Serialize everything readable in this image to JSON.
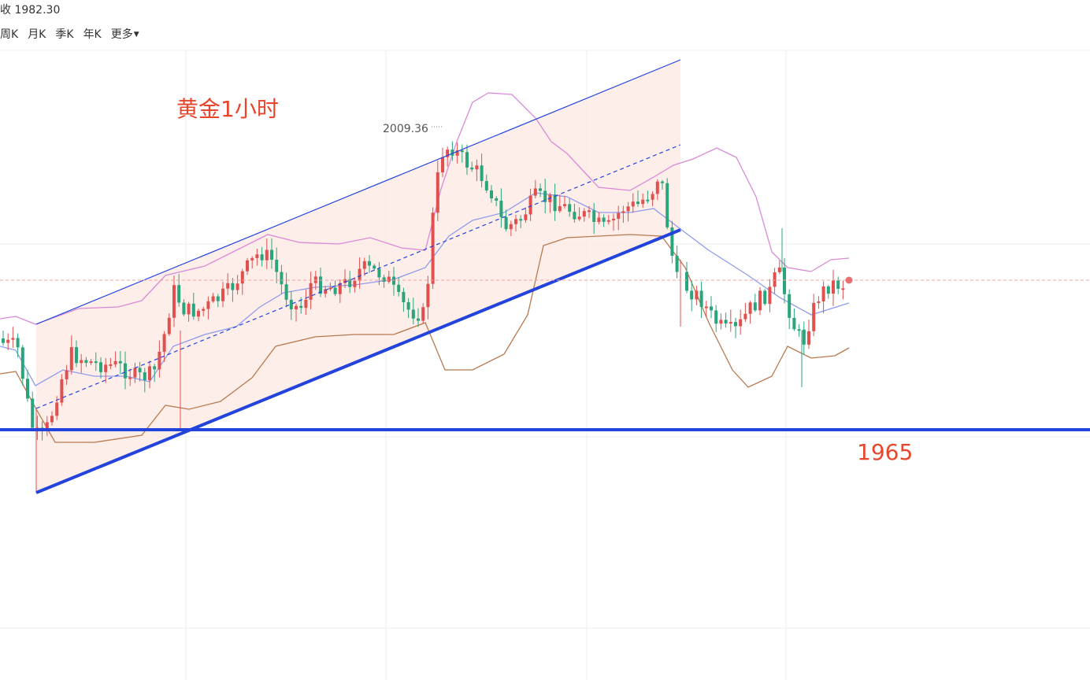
{
  "header": {
    "close_label": "收",
    "close_value": "1982.30",
    "periods": [
      "周K",
      "月K",
      "季K",
      "年K"
    ],
    "more_label": "更多"
  },
  "colors": {
    "up": "#e0504f",
    "down": "#2aa57b",
    "channel_line": "#2244dd",
    "channel_fill": "#fde8e2",
    "boll_upper": "#d98ad6",
    "boll_mid": "#8f9cea",
    "boll_lower": "#b9794f",
    "annotation": "#e8452c",
    "current_price_line": "#f2a0a0",
    "grid": "#eeeeee"
  },
  "chart_data": {
    "type": "candlestick",
    "title": "黄金1小时",
    "peak_label": "2009.36",
    "support_label": "1965",
    "current_price": 1982.3
  }
}
